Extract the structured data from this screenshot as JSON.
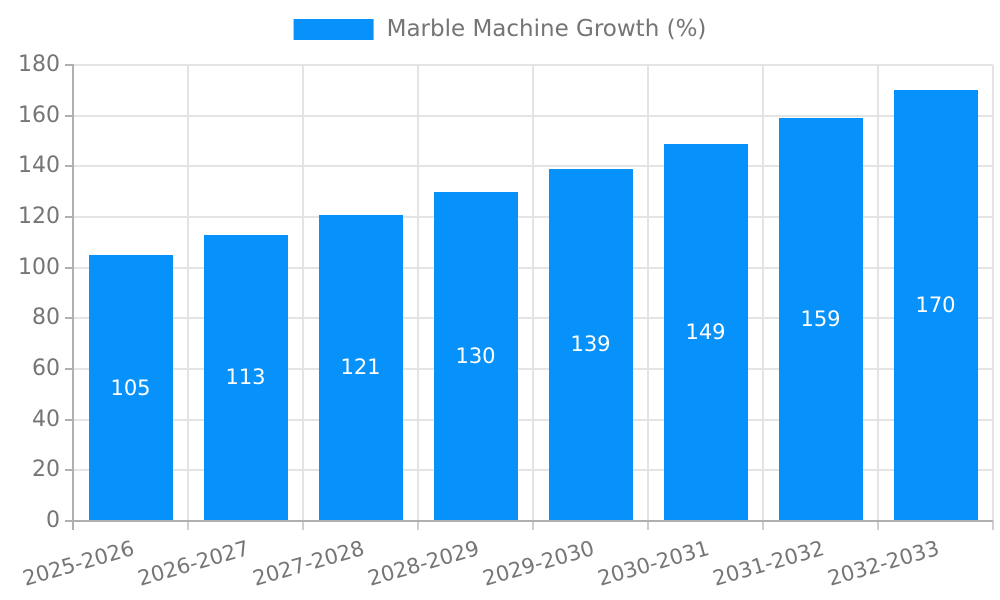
{
  "legend": {
    "label": "Marble Machine Growth (%)"
  },
  "chart_data": {
    "type": "bar",
    "title": "Marble Machine Growth (%)",
    "categories": [
      "2025-2026",
      "2026-2027",
      "2027-2028",
      "2028-2029",
      "2029-2030",
      "2030-2031",
      "2031-2032",
      "2032-2033"
    ],
    "values": [
      105,
      113,
      121,
      130,
      139,
      149,
      159,
      170
    ],
    "value_labels": [
      "105",
      "113",
      "121",
      "130",
      "139",
      "149",
      "159",
      "170"
    ],
    "xlabel": "",
    "ylabel": "",
    "ylim": [
      0,
      180
    ],
    "y_ticks": [
      0,
      20,
      40,
      60,
      80,
      100,
      120,
      140,
      160,
      180
    ],
    "grid": true,
    "legend_position": "top-center",
    "bar_color": "#0692fa",
    "value_label_color": "#ffffff",
    "style": {
      "grid_color": "#e4e4e4",
      "axis_color": "#b0b0b0",
      "tick_text_color": "#757575",
      "legend_text_color": "#757575",
      "background": "#ffffff"
    }
  }
}
